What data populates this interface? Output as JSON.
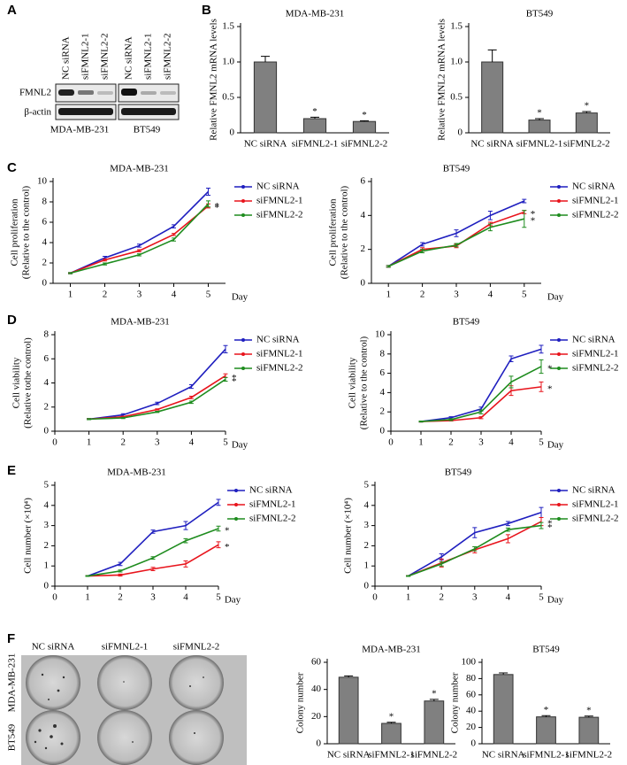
{
  "panel_labels": [
    "A",
    "B",
    "C",
    "D",
    "E",
    "F"
  ],
  "blot": {
    "lanes": [
      "NC siRNA",
      "siFMNL2-1",
      "siFMNL2-2",
      "NC siRNA",
      "siFMNL2-1",
      "siFMNL2-2"
    ],
    "rows": [
      "FMNL2",
      "β-actin"
    ],
    "cell_lines": [
      "MDA-MB-231",
      "BT549"
    ]
  },
  "plates": {
    "columns": [
      "NC siRNA",
      "siFMNL2-1",
      "siFMNL2-2"
    ],
    "rows": [
      "MDA-MB-231",
      "BT549"
    ]
  },
  "chart_data": [
    {
      "type": "bar",
      "title": "MDA-MB-231",
      "ylabel": [
        "Relative FMNL2 mRNA levels"
      ],
      "categories": [
        "NC siRNA",
        "siFMNL2-1",
        "siFMNL2-2"
      ],
      "values": [
        1.0,
        0.2,
        0.16
      ],
      "errors": [
        0.08,
        0.02,
        0.01
      ],
      "significance": [
        null,
        "*",
        "*"
      ],
      "color": "#808080",
      "ylim": [
        0,
        1.5
      ],
      "yticks": [
        0,
        0.5,
        {
          "value": 1,
          "label": "1.0"
        },
        1.5
      ]
    },
    {
      "type": "bar",
      "title": "BT549",
      "ylabel": [
        "Relative FMNL2 mRNA levels"
      ],
      "categories": [
        "NC siRNA",
        "siFMNL2-1",
        "siFMNL2-2"
      ],
      "values": [
        1.0,
        0.18,
        0.28
      ],
      "errors": [
        0.17,
        0.02,
        0.02
      ],
      "significance": [
        null,
        "*",
        "*"
      ],
      "color": "#808080",
      "ylim": [
        0,
        1.5
      ],
      "yticks": [
        0,
        0.5,
        {
          "value": 1,
          "label": "1.0"
        },
        1.5
      ]
    },
    {
      "type": "line",
      "title": "MDA-MB-231",
      "ylabel": [
        "Cell proliferation",
        "(Relative to the control)"
      ],
      "xlabel": "Day",
      "x": [
        1,
        2,
        3,
        4,
        5
      ],
      "xlim": [
        0.5,
        5.5
      ],
      "xticks": [
        1,
        2,
        3,
        4,
        5
      ],
      "ylim": [
        0,
        10
      ],
      "yticks": [
        0,
        2,
        4,
        6,
        8,
        10
      ],
      "legend": "right",
      "series": [
        {
          "name": "NC siRNA",
          "color": "#1f1fbf",
          "values": [
            1,
            2.5,
            3.7,
            5.6,
            9.0
          ],
          "errors": [
            0.05,
            0.15,
            0.15,
            0.15,
            0.35
          ]
        },
        {
          "name": "siFMNL2-1",
          "color": "#e8141c",
          "values": [
            1,
            2.3,
            3.2,
            4.8,
            7.6
          ],
          "errors": [
            0.05,
            0.1,
            0.1,
            0.1,
            0.2
          ],
          "significance": "*"
        },
        {
          "name": "siFMNL2-2",
          "color": "#1e8c1e",
          "values": [
            1,
            1.9,
            2.8,
            4.3,
            7.8
          ],
          "errors": [
            0.05,
            0.1,
            0.1,
            0.15,
            0.3
          ],
          "significance": "*"
        }
      ]
    },
    {
      "type": "line",
      "title": "BT549",
      "ylabel": [
        "Cell proliferation",
        "(Relative to the control)"
      ],
      "xlabel": "Day",
      "x": [
        1,
        2,
        3,
        4,
        5
      ],
      "xlim": [
        0.5,
        5.5
      ],
      "xticks": [
        1,
        2,
        3,
        4,
        5
      ],
      "ylim": [
        0,
        6
      ],
      "yticks": [
        0,
        2,
        4,
        6
      ],
      "legend": "right",
      "series": [
        {
          "name": "NC siRNA",
          "color": "#1f1fbf",
          "values": [
            1,
            2.3,
            2.95,
            4.0,
            4.85
          ],
          "errors": [
            0.05,
            0.1,
            0.2,
            0.25,
            0.1
          ]
        },
        {
          "name": "siFMNL2-1",
          "color": "#e8141c",
          "values": [
            1,
            2.0,
            2.2,
            3.5,
            4.2
          ],
          "errors": [
            0.05,
            0.1,
            0.1,
            0.1,
            0.1
          ],
          "significance": "*"
        },
        {
          "name": "siFMNL2-2",
          "color": "#1e8c1e",
          "values": [
            1,
            1.9,
            2.25,
            3.3,
            3.8
          ],
          "errors": [
            0.05,
            0.1,
            0.1,
            0.2,
            0.5
          ],
          "significance": "*"
        }
      ]
    },
    {
      "type": "line",
      "title": "MDA-MB-231",
      "ylabel": [
        "Cell viability",
        "(Relative tothe control)"
      ],
      "xlabel": "Day",
      "x": [
        1,
        2,
        3,
        4,
        5
      ],
      "xlim": [
        0,
        5
      ],
      "xticks": [
        0,
        1,
        2,
        3,
        4,
        5
      ],
      "ylim": [
        0,
        8
      ],
      "yticks": [
        0,
        2,
        4,
        6,
        8
      ],
      "legend": "right",
      "series": [
        {
          "name": "NC siRNA",
          "color": "#1f1fbf",
          "values": [
            1,
            1.35,
            2.3,
            3.7,
            6.8
          ],
          "errors": [
            0.05,
            0.1,
            0.1,
            0.15,
            0.3
          ]
        },
        {
          "name": "siFMNL2-1",
          "color": "#e8141c",
          "values": [
            1,
            1.2,
            1.8,
            2.8,
            4.6
          ],
          "errors": [
            0.05,
            0.05,
            0.05,
            0.1,
            0.15
          ],
          "significance": "*"
        },
        {
          "name": "siFMNL2-2",
          "color": "#1e8c1e",
          "values": [
            1,
            1.1,
            1.6,
            2.4,
            4.3
          ],
          "errors": [
            0.05,
            0.05,
            0.05,
            0.1,
            0.15
          ],
          "significance": "*"
        }
      ]
    },
    {
      "type": "line",
      "title": "BT549",
      "ylabel": [
        "Cell viability",
        "(Relative to the control)"
      ],
      "xlabel": "Day",
      "x": [
        1,
        2,
        3,
        4,
        5
      ],
      "xlim": [
        0,
        5
      ],
      "xticks": [
        0,
        1,
        2,
        3,
        4,
        5
      ],
      "ylim": [
        0,
        10
      ],
      "yticks": [
        0,
        2,
        4,
        6,
        8,
        10
      ],
      "legend": "right",
      "series": [
        {
          "name": "NC siRNA",
          "color": "#1f1fbf",
          "values": [
            1,
            1.4,
            2.3,
            7.5,
            8.5
          ],
          "errors": [
            0.05,
            0.1,
            0.2,
            0.3,
            0.4
          ]
        },
        {
          "name": "siFMNL2-1",
          "color": "#e8141c",
          "values": [
            1,
            1.1,
            1.4,
            4.2,
            4.6
          ],
          "errors": [
            0.05,
            0.05,
            0.1,
            0.5,
            0.5
          ],
          "significance": "*"
        },
        {
          "name": "siFMNL2-2",
          "color": "#1e8c1e",
          "values": [
            1,
            1.2,
            2.0,
            5.1,
            6.7
          ],
          "errors": [
            0.05,
            0.1,
            0.2,
            0.6,
            0.7
          ],
          "significance": "*"
        }
      ]
    },
    {
      "type": "line",
      "title": "MDA-MB-231",
      "ylabel": [
        "Cell number (×10⁴)"
      ],
      "xlabel": "Day",
      "x": [
        1,
        2,
        3,
        4,
        5
      ],
      "xlim": [
        0,
        5
      ],
      "xticks": [
        0,
        1,
        2,
        3,
        4,
        5
      ],
      "ylim": [
        0,
        5
      ],
      "yticks": [
        0,
        1,
        2,
        3,
        4,
        5
      ],
      "legend": "right",
      "series": [
        {
          "name": "NC siRNA",
          "color": "#1f1fbf",
          "values": [
            0.5,
            1.1,
            2.7,
            3.0,
            4.15
          ],
          "errors": [
            0.02,
            0.08,
            0.08,
            0.2,
            0.15
          ]
        },
        {
          "name": "siFMNL2-1",
          "color": "#e8141c",
          "values": [
            0.5,
            0.55,
            0.85,
            1.1,
            2.05
          ],
          "errors": [
            0.02,
            0.05,
            0.08,
            0.15,
            0.15
          ],
          "significance": "*"
        },
        {
          "name": "siFMNL2-2",
          "color": "#1e8c1e",
          "values": [
            0.5,
            0.75,
            1.4,
            2.25,
            2.85
          ],
          "errors": [
            0.02,
            0.05,
            0.06,
            0.1,
            0.12
          ],
          "significance": "*"
        }
      ]
    },
    {
      "type": "line",
      "title": "BT549",
      "ylabel": [
        "Cell number (×10⁴)"
      ],
      "xlabel": "Day",
      "x": [
        1,
        2,
        3,
        4,
        5
      ],
      "xlim": [
        0,
        5
      ],
      "xticks": [
        0,
        1,
        2,
        3,
        4,
        5
      ],
      "ylim": [
        0,
        5
      ],
      "yticks": [
        0,
        1,
        2,
        3,
        4,
        5
      ],
      "legend": "right",
      "series": [
        {
          "name": "NC siRNA",
          "color": "#1f1fbf",
          "values": [
            0.5,
            1.45,
            2.65,
            3.1,
            3.65
          ],
          "errors": [
            0.02,
            0.15,
            0.25,
            0.1,
            0.25
          ]
        },
        {
          "name": "siFMNL2-1",
          "color": "#e8141c",
          "values": [
            0.5,
            1.15,
            1.8,
            2.35,
            3.2
          ],
          "errors": [
            0.02,
            0.2,
            0.15,
            0.2,
            0.2
          ],
          "significance": "*"
        },
        {
          "name": "siFMNL2-2",
          "color": "#1e8c1e",
          "values": [
            0.5,
            1.1,
            1.85,
            2.8,
            3.0
          ],
          "errors": [
            0.02,
            0.1,
            0.1,
            0.08,
            0.15
          ],
          "significance": "*"
        }
      ]
    },
    {
      "type": "bar",
      "title": "MDA-MB-231",
      "ylabel": [
        "Colony number"
      ],
      "categories": [
        "NC siRNA",
        "siFMNL2-1",
        "siFMNL2-2"
      ],
      "values": [
        49,
        15,
        31.5
      ],
      "errors": [
        1,
        0.8,
        1.2
      ],
      "significance": [
        null,
        "*",
        "*"
      ],
      "color": "#808080",
      "ylim": [
        0,
        60
      ],
      "yticks": [
        0,
        20,
        40,
        60
      ]
    },
    {
      "type": "bar",
      "title": "BT549",
      "ylabel": [
        "Colony number"
      ],
      "categories": [
        "NC siRNA",
        "siFMNL2-1",
        "siFMNL2-2"
      ],
      "values": [
        85,
        33,
        32.5
      ],
      "errors": [
        2,
        1.5,
        1.5
      ],
      "significance": [
        null,
        "*",
        "*"
      ],
      "color": "#808080",
      "ylim": [
        0,
        100
      ],
      "yticks": [
        0,
        20,
        40,
        60,
        80,
        100
      ]
    }
  ]
}
